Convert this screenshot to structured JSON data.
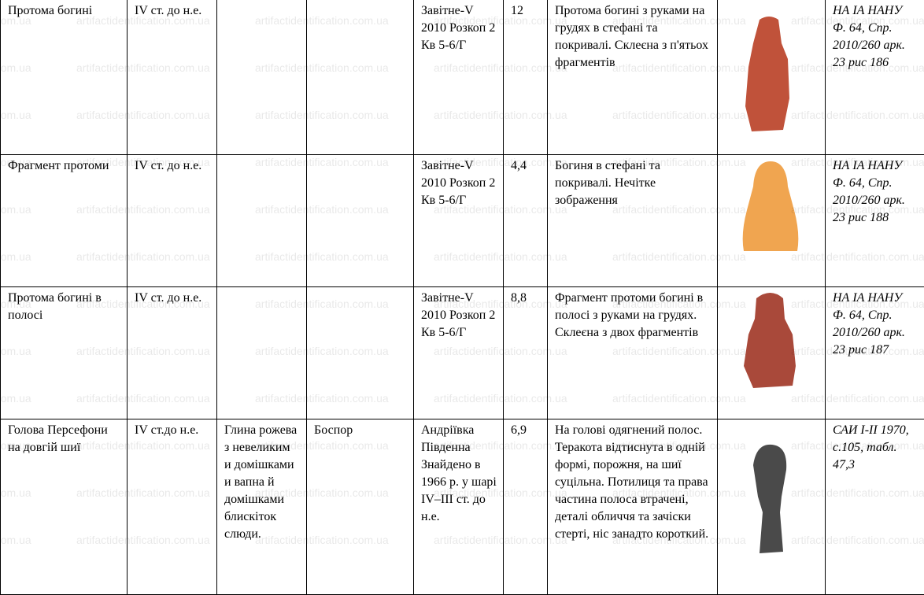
{
  "watermark": "artifactidentification.com.ua",
  "rows": [
    {
      "name": "Протома богині",
      "date": "IV ст. до н.е.",
      "material": "",
      "origin": "",
      "find": "Завітне-V 2010 Розкоп 2 Кв 5-6/Г",
      "size": "12",
      "description": "Протома богині з руками на грудях в стефані та покривалі. Склеєна з п'ятьох фрагментів",
      "image_color": "#c0523a",
      "ref": "НА ІА НАНУ Ф. 64, Спр. 2010/260 арк. 23 рис 186"
    },
    {
      "name": "Фрагмент протоми",
      "date": "IV ст. до н.е.",
      "material": "",
      "origin": "",
      "find": "Завітне-V 2010 Розкоп 2 Кв 5-6/Г",
      "size": "4,4",
      "description": "Богиня в стефані та покривалі. Нечітке зображення",
      "image_color": "#f0a550",
      "ref": "НА ІА НАНУ Ф. 64, Спр. 2010/260 арк. 23 рис 188"
    },
    {
      "name": "Протома богині в полосі",
      "date": "IV ст. до н.е.",
      "material": "",
      "origin": "",
      "find": "Завітне-V 2010 Розкоп 2 Кв 5-6/Г",
      "size": "8,8",
      "description": "Фрагмент протоми богині в полосі з руками на грудях. Склеєна з двох фрагментів",
      "image_color": "#a9493a",
      "ref": "НА ІА НАНУ Ф. 64, Спр. 2010/260 арк. 23 рис 187"
    },
    {
      "name": "Голова Персефони на довгій шиї",
      "date": "IV ст.до н.е.",
      "material": "Глина рожева з невеликим и домішками и вапна й домішками блискіток слюди.",
      "origin": "Боспор",
      "find": "Андріївка Південна Знайдено в 1966 р. у шарі IV–III ст. до н.е.",
      "size": "6,9",
      "description": "На голові одягнений полос. Теракота відтиснута в одній формі, порожня, на шиї суцільна. Потилиця та права частина полоса втрачені, деталі обличчя та зачіски стерті, ніс занадто короткий.",
      "image_color": "#4a4a4a",
      "ref": "САИ І-ІІ 1970, с.105, табл. 47,3"
    }
  ]
}
